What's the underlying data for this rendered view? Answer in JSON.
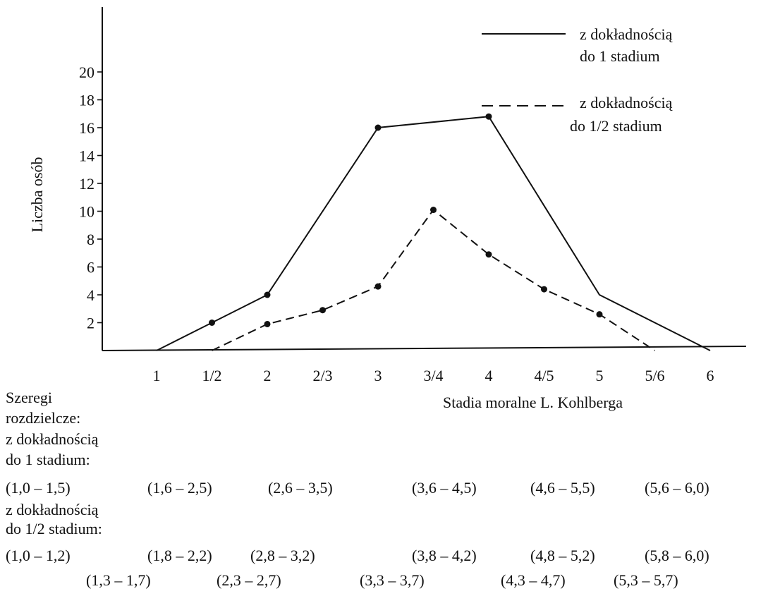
{
  "chart_data": {
    "type": "line",
    "title": "",
    "xlabel": "Stadia moralne L. Kohlberga",
    "ylabel": "Liczba osób",
    "categories": [
      "1",
      "1/2",
      "2",
      "2/3",
      "3",
      "3/4",
      "4",
      "4/5",
      "5",
      "5/6",
      "6"
    ],
    "yticks": [
      "2",
      "4",
      "6",
      "8",
      "10",
      "12",
      "14",
      "16",
      "18",
      "20"
    ],
    "ylim": [
      0,
      20
    ],
    "grid": false,
    "legend_position": "top-right",
    "series": [
      {
        "name": "z dokładnością do 1 stadium",
        "line_style": "solid",
        "x": [
          "1",
          "1/2",
          "2",
          "3",
          "4",
          "5",
          "6"
        ],
        "values": [
          0,
          2,
          4,
          16,
          16.8,
          4,
          0
        ],
        "markers": [
          false,
          true,
          true,
          true,
          true,
          false,
          false
        ]
      },
      {
        "name": "z dokładnością do 1/2 stadium",
        "line_style": "dashed",
        "x": [
          "1/2",
          "2",
          "2/3",
          "3",
          "3/4",
          "4",
          "4/5",
          "5",
          "5/6"
        ],
        "values": [
          0,
          1.9,
          2.9,
          4.6,
          10.1,
          6.9,
          4.4,
          2.6,
          0
        ],
        "markers": [
          false,
          true,
          true,
          true,
          true,
          true,
          true,
          true,
          false
        ]
      }
    ],
    "legend": {
      "solid": [
        "z dokładnością",
        "do 1 stadium"
      ],
      "dashed": [
        "z dokładnością",
        "do 1/2 stadium"
      ]
    }
  },
  "notes": {
    "heading": [
      "Szeregi",
      "rozdzielcze:"
    ],
    "group1_label": [
      "z dokładnością",
      "do 1 stadium:"
    ],
    "group1_ranges": [
      "(1,0 – 1,5)",
      "(1,6 – 2,5)",
      "(2,6 – 3,5)",
      "(3,6 – 4,5)",
      "(4,6 – 5,5)",
      "(5,6  – 6,0)"
    ],
    "group2_label": [
      "z dokładnością",
      "do 1/2 stadium:"
    ],
    "group2_ranges_row1": [
      "(1,0 – 1,2)",
      "(1,8 – 2,2)",
      "(2,8 – 3,2)",
      "(3,8 – 4,2)",
      "(4,8 – 5,2)",
      "(5,8  – 6,0)"
    ],
    "group2_ranges_row2": [
      "(1,3 – 1,7)",
      "(2,3 – 2,7)",
      "(3,3 – 3,7)",
      "(4,3 – 4,7)",
      "(5,3 – 5,7)"
    ]
  }
}
